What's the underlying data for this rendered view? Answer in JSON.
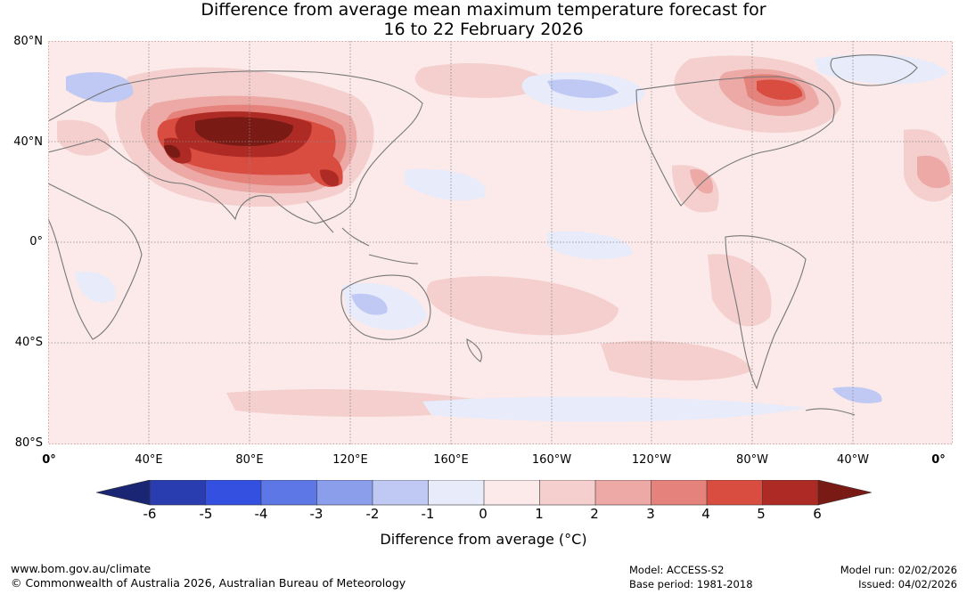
{
  "title": {
    "line1": "Difference from average mean maximum temperature forecast for",
    "line2": "16 to 22 February 2026"
  },
  "map": {
    "latitude_labels": [
      "80°N",
      "40°N",
      "0°",
      "40°S",
      "80°S"
    ],
    "longitude_labels": [
      "0°",
      "40°E",
      "80°E",
      "120°E",
      "160°E",
      "160°W",
      "120°W",
      "80°W",
      "40°W",
      "0°"
    ],
    "background_color": "#fbeae9",
    "coast_color": "#777777"
  },
  "colorbar": {
    "ticks": [
      "-6",
      "-5",
      "-4",
      "-3",
      "-2",
      "-1",
      "0",
      "1",
      "2",
      "3",
      "4",
      "5",
      "6"
    ],
    "under_color": "#1a2673",
    "over_color": "#7a1a15",
    "colors": [
      "#2a3db0",
      "#3350e0",
      "#5d78e6",
      "#8a9eec",
      "#bfc9f4",
      "#e7ebfa",
      "#fbeae9",
      "#f4cfcd",
      "#eca9a5",
      "#e5827b",
      "#d94c40",
      "#ad2b24"
    ],
    "label": "Difference from average (°C)"
  },
  "footer": {
    "website": "www.bom.gov.au/climate",
    "copyright": "© Commonwealth of Australia 2026, Australian Bureau of Meteorology",
    "model": "Model: ACCESS-S2",
    "base_period": "Base period: 1981-2018",
    "model_run": "Model run: 02/02/2026",
    "issued": "Issued: 04/02/2026"
  }
}
